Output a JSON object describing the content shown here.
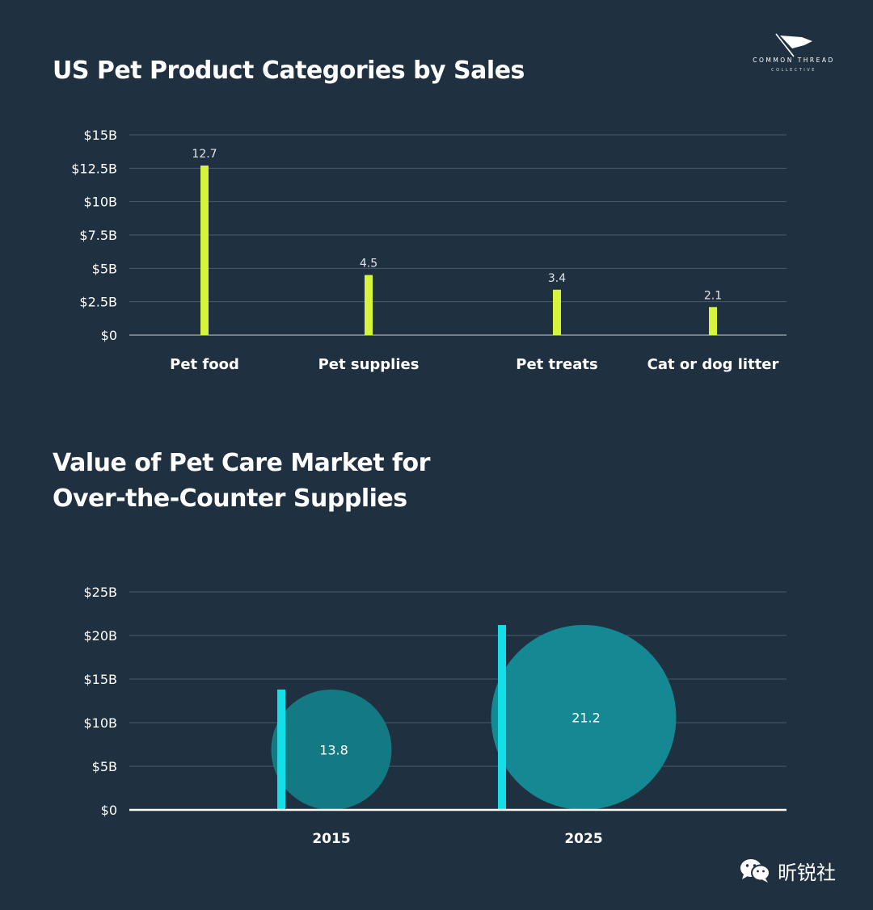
{
  "logo": {
    "brand": "COMMON THREAD",
    "sub": "COLLECTIVE"
  },
  "watermark": {
    "text": "昕锐社"
  },
  "colors": {
    "background": "#1f3040",
    "grid": "#4a5b6a",
    "bar1": "#d6f53a",
    "bar2": "#13dfe9",
    "bubble2": "#148893"
  },
  "chart_data": [
    {
      "type": "bar",
      "title": "US Pet Product Categories by Sales",
      "categories": [
        "Pet food",
        "Pet supplies",
        "Pet treats",
        "Cat or dog litter"
      ],
      "values": [
        12.7,
        4.5,
        3.4,
        2.1
      ],
      "data_labels": [
        "12.7",
        "4.5",
        "3.4",
        "2.1"
      ],
      "unit": "B",
      "yticks": [
        0,
        2.5,
        5,
        7.5,
        10,
        12.5,
        15
      ],
      "ytick_labels": [
        "$0",
        "$2.5B",
        "$5B",
        "$7.5B",
        "$10B",
        "$12.5B",
        "$15B"
      ],
      "ylim": [
        0,
        15
      ],
      "grid": true,
      "xlabel": "",
      "ylabel": ""
    },
    {
      "type": "bar",
      "title": "Value of Pet Care Market for\nOver-the-Counter Supplies",
      "categories": [
        "2015",
        "2025"
      ],
      "values": [
        13.8,
        21.2
      ],
      "data_labels": [
        "13.8",
        "21.2"
      ],
      "unit": "B",
      "yticks": [
        0,
        5,
        10,
        15,
        20,
        25
      ],
      "ytick_labels": [
        "$0",
        "$5B",
        "$10B",
        "$15B",
        "$20B",
        "$25B"
      ],
      "ylim": [
        0,
        25
      ],
      "grid": true,
      "xlabel": "",
      "ylabel": ""
    }
  ]
}
